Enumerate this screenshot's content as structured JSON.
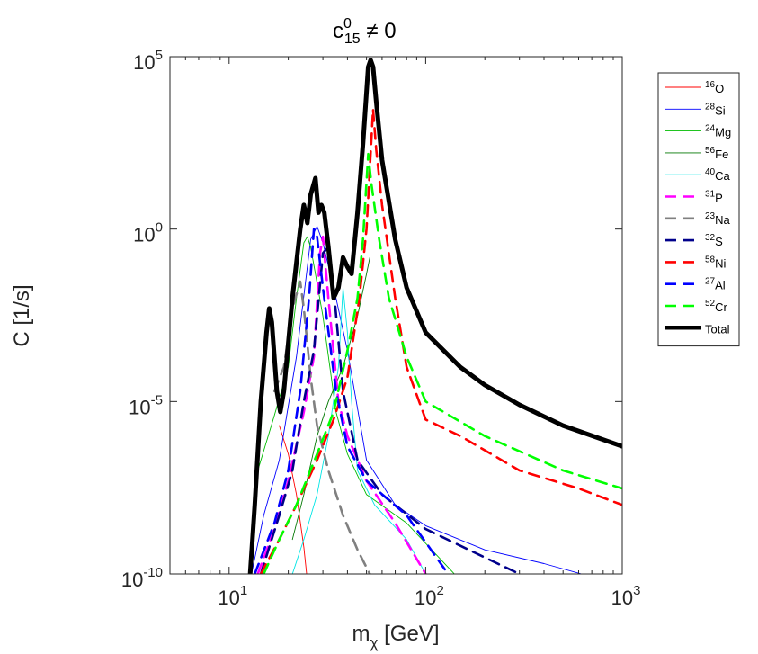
{
  "chart_data": {
    "type": "line",
    "title": {
      "base": "c",
      "sup": "0",
      "sub": "15",
      "rest": " ≠ 0"
    },
    "xlabel": {
      "base": "m",
      "sub": "χ",
      "rest": " [GeV]"
    },
    "ylabel": "C [1/s]",
    "x_scale": "log",
    "y_scale": "log",
    "xlim": [
      5,
      1000
    ],
    "ylim": [
      1e-10,
      100000
    ],
    "x_ticks": [
      {
        "value": 10,
        "base": "10",
        "exp": "1"
      },
      {
        "value": 100,
        "base": "10",
        "exp": "2"
      },
      {
        "value": 1000,
        "base": "10",
        "exp": "3"
      }
    ],
    "y_ticks": [
      {
        "value": 1e-10,
        "base": "10",
        "exp": "-10"
      },
      {
        "value": 1e-05,
        "base": "10",
        "exp": "-5"
      },
      {
        "value": 1,
        "base": "10",
        "exp": "0"
      },
      {
        "value": 100000,
        "base": "10",
        "exp": "5"
      }
    ],
    "grid": false,
    "legend_position": "outside-right-top",
    "series": [
      {
        "name": "16O",
        "sup": "16",
        "sym": "O",
        "color": "#ff0000",
        "style": "solid",
        "weight": "thin",
        "points": [
          [
            18,
            2e-06
          ],
          [
            20,
            3e-07
          ],
          [
            22,
            2e-08
          ],
          [
            24,
            6e-10
          ],
          [
            24.8,
            1e-10
          ]
        ]
      },
      {
        "name": "28Si",
        "sup": "28",
        "sym": "Si",
        "color": "#0000ff",
        "style": "solid",
        "weight": "thin",
        "points": [
          [
            13,
            1e-10
          ],
          [
            15,
            5e-09
          ],
          [
            18,
            2e-07
          ],
          [
            22,
            0.0002
          ],
          [
            26,
            0.5
          ],
          [
            28,
            1.2
          ],
          [
            30,
            0.4
          ],
          [
            35,
            0.01
          ],
          [
            40,
            0.0003
          ],
          [
            50,
            2e-07
          ],
          [
            70,
            1e-08
          ],
          [
            100,
            2.5e-09
          ],
          [
            200,
            5e-10
          ],
          [
            400,
            2e-10
          ],
          [
            620,
            1e-10
          ]
        ]
      },
      {
        "name": "24Mg",
        "sup": "24",
        "sym": "Mg",
        "color": "#00bb00",
        "style": "solid",
        "weight": "thin",
        "points": [
          [
            14,
            1e-07
          ],
          [
            17,
            4e-06
          ],
          [
            20,
            0.0001
          ],
          [
            22,
            0.01
          ],
          [
            24,
            0.4
          ],
          [
            25,
            0.6
          ],
          [
            26,
            0.3
          ],
          [
            30,
            0.003
          ],
          [
            35,
            5e-06
          ],
          [
            40,
            3e-07
          ],
          [
            50,
            2e-08
          ],
          [
            80,
            3e-09
          ],
          [
            140,
            1e-10
          ]
        ]
      },
      {
        "name": "56Fe",
        "sup": "56",
        "sym": "Fe",
        "color": "#007700",
        "style": "solid",
        "weight": "thin",
        "points": [
          [
            21,
            1e-09
          ],
          [
            24,
            2e-08
          ],
          [
            28,
            1e-06
          ],
          [
            32,
            1e-05
          ],
          [
            38,
            0.0001
          ],
          [
            45,
            0.003
          ],
          [
            50,
            0.05
          ],
          [
            52,
            0.15
          ]
        ]
      },
      {
        "name": "40Ca",
        "sup": "40",
        "sym": "Ca",
        "color": "#00e5e5",
        "style": "solid",
        "weight": "thin",
        "points": [
          [
            21,
            1e-10
          ],
          [
            24,
            1e-09
          ],
          [
            28,
            2e-08
          ],
          [
            32,
            1e-06
          ],
          [
            36,
            0.0001
          ],
          [
            38,
            0.02
          ],
          [
            40,
            0.001
          ],
          [
            42,
            1e-05
          ],
          [
            45,
            1e-07
          ],
          [
            55,
            1e-08
          ],
          [
            80,
            1e-09
          ],
          [
            100,
            1e-10
          ]
        ]
      },
      {
        "name": "31P",
        "sup": "31",
        "sym": "P",
        "color": "#ff00ff",
        "style": "dashed",
        "weight": "thick",
        "points": [
          [
            14,
            1e-10
          ],
          [
            17,
            2e-09
          ],
          [
            20,
            5e-08
          ],
          [
            24,
            5e-06
          ],
          [
            27,
            0.0002
          ],
          [
            29,
            0.2
          ],
          [
            30,
            0.6
          ],
          [
            32,
            0.01
          ],
          [
            36,
            1e-05
          ],
          [
            40,
            1e-06
          ],
          [
            50,
            5e-08
          ],
          [
            70,
            3e-09
          ],
          [
            100,
            1e-10
          ]
        ]
      },
      {
        "name": "23Na",
        "sup": "23",
        "sym": "Na",
        "color": "#808080",
        "style": "dashed",
        "weight": "thick",
        "points": [
          [
            17,
            2e-05
          ],
          [
            19,
            0.0001
          ],
          [
            21,
            0.005
          ],
          [
            23,
            0.03
          ],
          [
            24,
            0.005
          ],
          [
            26,
            5e-05
          ],
          [
            28,
            2e-06
          ],
          [
            32,
            1e-07
          ],
          [
            38,
            5e-09
          ],
          [
            45,
            5e-10
          ],
          [
            52,
            1e-10
          ]
        ]
      },
      {
        "name": "32S",
        "sup": "32",
        "sym": "S",
        "color": "#00008b",
        "style": "dashed",
        "weight": "thick",
        "points": [
          [
            14.5,
            1e-10
          ],
          [
            18,
            5e-09
          ],
          [
            21,
            1e-07
          ],
          [
            24,
            1e-05
          ],
          [
            27,
            0.0003
          ],
          [
            30,
            0.2
          ],
          [
            32,
            0.3
          ],
          [
            34,
            0.02
          ],
          [
            38,
            2e-05
          ],
          [
            45,
            2e-07
          ],
          [
            60,
            2e-08
          ],
          [
            100,
            2e-09
          ],
          [
            200,
            3e-10
          ],
          [
            300,
            1e-10
          ]
        ]
      },
      {
        "name": "58Ni",
        "sup": "58",
        "sym": "Ni",
        "color": "#ff0000",
        "style": "dashed",
        "weight": "thick",
        "points": [
          [
            14.5,
            1e-10
          ],
          [
            18,
            1e-09
          ],
          [
            22,
            1e-08
          ],
          [
            28,
            2e-07
          ],
          [
            34,
            3e-06
          ],
          [
            40,
            5e-05
          ],
          [
            46,
            0.01
          ],
          [
            50,
            1
          ],
          [
            54,
            3000
          ],
          [
            56,
            200
          ],
          [
            60,
            5
          ],
          [
            70,
            0.01
          ],
          [
            80,
            0.0001
          ],
          [
            100,
            3e-06
          ],
          [
            150,
            1e-06
          ],
          [
            300,
            1e-07
          ],
          [
            600,
            3e-08
          ],
          [
            1000,
            1e-08
          ]
        ]
      },
      {
        "name": "27Al",
        "sup": "27",
        "sym": "Al",
        "color": "#0000ff",
        "style": "dashed",
        "weight": "thick",
        "points": [
          [
            13.5,
            1e-10
          ],
          [
            17,
            3e-09
          ],
          [
            20,
            1e-07
          ],
          [
            23,
            2e-05
          ],
          [
            25.5,
            0.01
          ],
          [
            27,
            1
          ],
          [
            28,
            0.6
          ],
          [
            30,
            0.02
          ],
          [
            35,
            2e-05
          ],
          [
            40,
            5e-07
          ],
          [
            50,
            5e-08
          ],
          [
            80,
            5e-09
          ],
          [
            130,
            1e-10
          ]
        ]
      },
      {
        "name": "52Cr",
        "sup": "52",
        "sym": "Cr",
        "color": "#00ff00",
        "style": "dashed",
        "weight": "thick",
        "points": [
          [
            15,
            1e-10
          ],
          [
            18,
            1e-09
          ],
          [
            22,
            1e-08
          ],
          [
            28,
            3e-07
          ],
          [
            34,
            5e-06
          ],
          [
            40,
            0.0003
          ],
          [
            45,
            0.01
          ],
          [
            48,
            0.5
          ],
          [
            51,
            150
          ],
          [
            53,
            20
          ],
          [
            58,
            0.5
          ],
          [
            65,
            0.01
          ],
          [
            80,
            0.0002
          ],
          [
            100,
            1e-05
          ],
          [
            200,
            1e-06
          ],
          [
            500,
            1e-07
          ],
          [
            1000,
            3e-08
          ]
        ]
      },
      {
        "name": "Total",
        "sup": "",
        "sym": "Total",
        "color": "#000000",
        "style": "solid",
        "weight": "heavy",
        "points": [
          [
            12.8,
            1e-10
          ],
          [
            13.5,
            1e-08
          ],
          [
            14.5,
            1e-05
          ],
          [
            15.5,
            0.001
          ],
          [
            16,
            0.005
          ],
          [
            16.5,
            0.002
          ],
          [
            17.5,
            2e-05
          ],
          [
            18.2,
            5e-06
          ],
          [
            19,
            2e-05
          ],
          [
            21,
            0.01
          ],
          [
            23,
            1
          ],
          [
            24,
            5
          ],
          [
            25,
            1.5
          ],
          [
            26,
            10
          ],
          [
            27.5,
            30
          ],
          [
            28.5,
            3
          ],
          [
            29.5,
            5
          ],
          [
            30.5,
            3
          ],
          [
            32,
            0.3
          ],
          [
            34,
            0.01
          ],
          [
            36,
            0.02
          ],
          [
            38,
            0.15
          ],
          [
            40,
            0.08
          ],
          [
            42,
            0.05
          ],
          [
            45,
            3
          ],
          [
            48,
            300
          ],
          [
            51,
            50000
          ],
          [
            52.5,
            80000
          ],
          [
            54,
            50000
          ],
          [
            56,
            5000
          ],
          [
            60,
            100
          ],
          [
            70,
            0.5
          ],
          [
            80,
            0.02
          ],
          [
            100,
            0.001
          ],
          [
            150,
            0.0001
          ],
          [
            200,
            3e-05
          ],
          [
            300,
            8e-06
          ],
          [
            500,
            2e-06
          ],
          [
            1000,
            5e-07
          ]
        ]
      }
    ]
  }
}
